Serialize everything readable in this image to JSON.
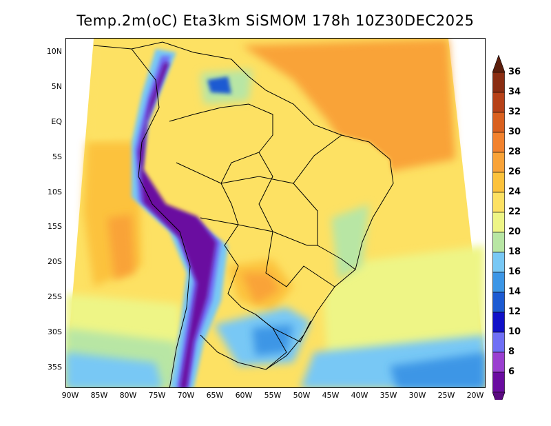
{
  "title": "Temp.2m(oC) Eta3km SiSMOM 178h 10Z30DEC2025",
  "map": {
    "lat_labels": [
      "10N",
      "5N",
      "EQ",
      "5S",
      "10S",
      "15S",
      "20S",
      "25S",
      "30S",
      "35S"
    ],
    "lon_labels": [
      "90W",
      "85W",
      "80W",
      "75W",
      "70W",
      "65W",
      "60W",
      "55W",
      "50W",
      "45W",
      "40W",
      "35W",
      "30W",
      "25W",
      "20W"
    ],
    "lat_range": [
      -37.5,
      11
    ],
    "lon_range": [
      -91,
      -19
    ]
  },
  "colorbar": {
    "labels": [
      "6",
      "8",
      "10",
      "12",
      "14",
      "16",
      "18",
      "20",
      "22",
      "24",
      "26",
      "28",
      "30",
      "32",
      "34",
      "36"
    ],
    "colors": [
      "#6a0ca0",
      "#9a3fd0",
      "#6f6ff5",
      "#1010c8",
      "#1c5ad2",
      "#3c96e6",
      "#78c8f5",
      "#b8e6a4",
      "#eef586",
      "#fde163",
      "#fcc23c",
      "#f9a338",
      "#f2822e",
      "#d9601f",
      "#b64118",
      "#8a2d12",
      "#5c1e0c"
    ],
    "top_triangle_color": "#5c1e0c",
    "bottom_triangle_color": "#5a0a80"
  }
}
